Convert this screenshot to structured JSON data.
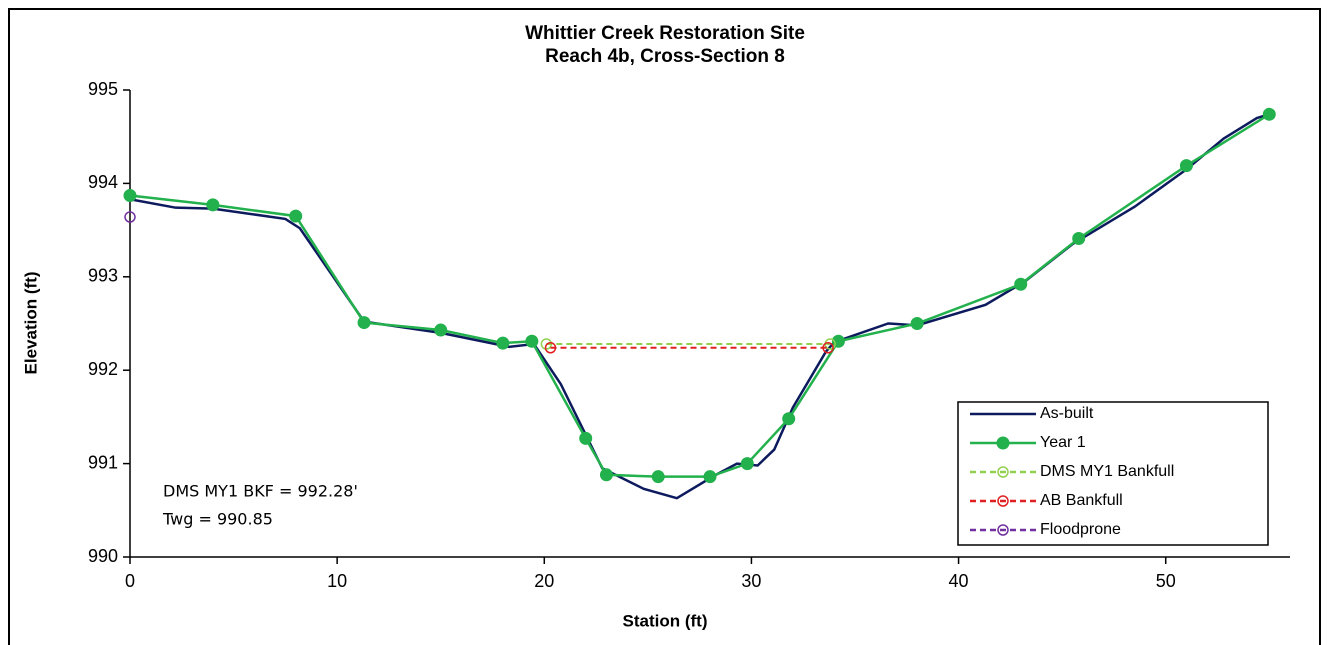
{
  "chart_data": {
    "type": "line",
    "title": "Whittier Creek Restoration Site",
    "subtitle": "Reach 4b, Cross-Section 8",
    "x_label": "Station (ft)",
    "y_label": "Elevation (ft)",
    "annotations": [
      "DMS MY1 BKF = 992.28'",
      "Twg = 990.85"
    ],
    "xlim": [
      0,
      56
    ],
    "ylim": [
      990,
      995
    ],
    "xticks": [
      0,
      10,
      20,
      30,
      40,
      50
    ],
    "yticks": [
      990,
      991,
      992,
      993,
      994,
      995
    ],
    "grid": false,
    "legend": "lower right",
    "series": [
      {
        "name": "As-built",
        "color": "#0d1b5e",
        "markers": "none",
        "dashed": false,
        "x": [
          0,
          2.2,
          4,
          7.5,
          8.2,
          11.3,
          15,
          18.3,
          19.5,
          20.8,
          22.8,
          24.8,
          26.4,
          28.2,
          29.3,
          30.3,
          31.1,
          32,
          33.6,
          34,
          36.6,
          38,
          41.3,
          43.2,
          45.5,
          48.5,
          51,
          52.8,
          54.4,
          55
        ],
        "values": [
          993.83,
          993.74,
          993.73,
          993.62,
          993.52,
          992.52,
          992.4,
          992.25,
          992.28,
          991.85,
          990.95,
          990.73,
          990.63,
          990.87,
          991.0,
          990.98,
          991.15,
          991.6,
          992.2,
          992.3,
          992.5,
          992.48,
          992.7,
          992.95,
          993.35,
          993.75,
          994.15,
          994.48,
          994.7,
          994.74
        ]
      },
      {
        "name": "Year 1",
        "color": "#22b14c",
        "markers": "filled",
        "dashed": false,
        "x": [
          0,
          4,
          8,
          11.3,
          15,
          18,
          19.4,
          22,
          23,
          25.5,
          28,
          29.8,
          31.8,
          34.2,
          38,
          43,
          45.8,
          51,
          55
        ],
        "values": [
          993.87,
          993.77,
          993.65,
          992.51,
          992.43,
          992.29,
          992.31,
          991.27,
          990.88,
          990.86,
          990.86,
          991.0,
          991.48,
          992.31,
          992.5,
          992.92,
          993.41,
          994.19,
          994.74
        ]
      },
      {
        "name": "DMS MY1 Bankfull",
        "color": "#92d050",
        "markers": "open",
        "dashed": true,
        "x": [
          20.1,
          33.8
        ],
        "values": [
          992.28,
          992.28
        ]
      },
      {
        "name": "AB Bankfull",
        "color": "#e02020",
        "markers": "open",
        "dashed": true,
        "x": [
          20.3,
          33.7
        ],
        "values": [
          992.24,
          992.24
        ]
      },
      {
        "name": "Floodprone",
        "color": "#7030a0",
        "markers": "open",
        "dashed": true,
        "x": [
          0
        ],
        "values": [
          993.64
        ]
      }
    ]
  }
}
